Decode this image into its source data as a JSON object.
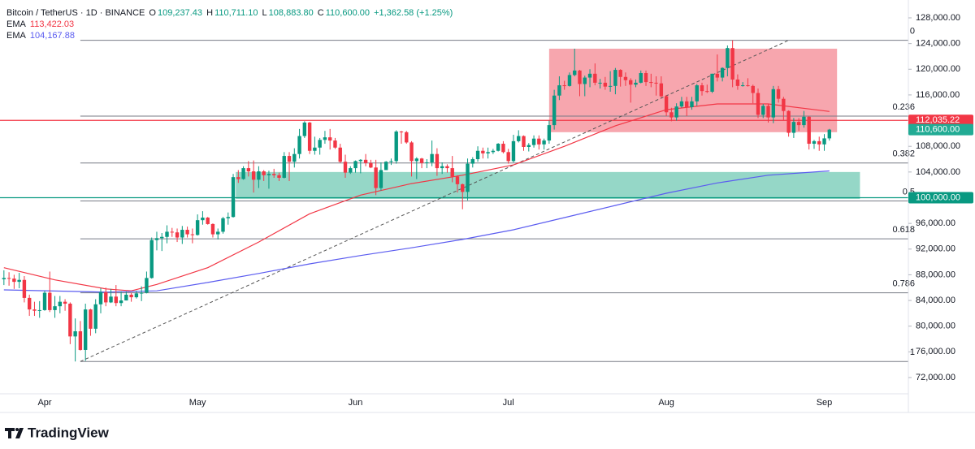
{
  "header": {
    "symbol": "Bitcoin / TetherUS · 1D · BINANCE",
    "ohlc": [
      {
        "key": "O",
        "value": "109,237.43"
      },
      {
        "key": "H",
        "value": "110,711.10"
      },
      {
        "key": "L",
        "value": "108,883.80"
      },
      {
        "key": "C",
        "value": "110,600.00"
      }
    ],
    "change": "+1,362.58 (+1.25%)"
  },
  "chart_data": {
    "type": "candlestick",
    "categories": [
      null,
      null,
      null,
      null,
      null,
      null,
      null,
      null,
      "Apr",
      null,
      null,
      null,
      null,
      null,
      null,
      null,
      null,
      null,
      null,
      null,
      null,
      null,
      null,
      null,
      null,
      null,
      null,
      null,
      null,
      null,
      null,
      null,
      null,
      null,
      null,
      null,
      null,
      null,
      "May",
      null,
      null,
      null,
      null,
      null,
      null,
      null,
      null,
      null,
      null,
      null,
      null,
      null,
      null,
      null,
      null,
      null,
      null,
      null,
      null,
      null,
      null,
      null,
      null,
      null,
      null,
      null,
      null,
      null,
      null,
      "Jun",
      null,
      null,
      null,
      null,
      null,
      null,
      null,
      null,
      null,
      null,
      null,
      null,
      null,
      null,
      null,
      null,
      null,
      null,
      null,
      null,
      null,
      null,
      null,
      null,
      null,
      null,
      null,
      null,
      null,
      "Jul",
      null,
      null,
      null,
      null,
      null,
      null,
      null,
      null,
      null,
      null,
      null,
      null,
      null,
      null,
      null,
      null,
      null,
      null,
      null,
      null,
      null,
      null,
      null,
      null,
      null,
      null,
      null,
      null,
      null,
      null,
      "Aug",
      null,
      null,
      null,
      null,
      null,
      null,
      null,
      null,
      null,
      null,
      null,
      null,
      null,
      null,
      null,
      null,
      null,
      null,
      null,
      null,
      null,
      null,
      null,
      null,
      null,
      null,
      null,
      null,
      null,
      null,
      "Sep",
      null
    ],
    "open": [
      87300,
      87500,
      87400,
      86900,
      87200,
      84400,
      82600,
      82400,
      82500,
      85200,
      82500,
      83100,
      83800,
      83500,
      78400,
      79200,
      76300,
      82600,
      79600,
      83400,
      85300,
      83700,
      84600,
      83600,
      84000,
      84900,
      84500,
      85100,
      85200,
      87500,
      93400,
      93700,
      93900,
      94700,
      94600,
      93800,
      95000,
      94300,
      94200,
      96500,
      96900,
      95900,
      94300,
      94700,
      96800,
      97000,
      103200,
      102900,
      104600,
      104100,
      102800,
      104100,
      103500,
      103700,
      103500,
      103100,
      106500,
      105600,
      106800,
      109600,
      111700,
      107300,
      107800,
      109000,
      109400,
      108900,
      107800,
      105600,
      103900,
      104600,
      105700,
      105900,
      105400,
      104700,
      101500,
      104300,
      105600,
      105700,
      110300,
      110200,
      108600,
      105700,
      106100,
      105400,
      105500,
      106800,
      104600,
      104900,
      104600,
      103300,
      102100,
      100900,
      105300,
      106000,
      107300,
      106900,
      107100,
      107300,
      108400,
      107100,
      105700,
      108800,
      109600,
      107900,
      108200,
      109200,
      108300,
      108900,
      111300,
      115900,
      117500,
      117400,
      119100,
      119800,
      117700,
      118700,
      119300,
      117900,
      117900,
      117300,
      117400,
      119900,
      118800,
      118300,
      117600,
      117900,
      119400,
      118000,
      117900,
      117800,
      115800,
      113300,
      112500,
      114200,
      115000,
      114100,
      115000,
      117500,
      116600,
      116500,
      119300,
      118700,
      120200,
      123300,
      118400,
      117400,
      117500,
      117400,
      116300,
      112900,
      114300,
      112500,
      116900,
      115400,
      113500,
      110100,
      111800,
      111300,
      112600,
      108400,
      108800,
      108300,
      109237.43
    ],
    "high": [
      88700,
      88400,
      88000,
      88300,
      87800,
      84900,
      83800,
      83900,
      85500,
      88500,
      84700,
      84700,
      84200,
      83700,
      81200,
      80800,
      83500,
      82700,
      84200,
      85900,
      86000,
      85800,
      86400,
      85400,
      85400,
      85200,
      85500,
      86200,
      88500,
      93800,
      94700,
      94500,
      95700,
      95300,
      95200,
      95600,
      95500,
      95200,
      97400,
      97900,
      97000,
      96000,
      95200,
      97000,
      97700,
      103700,
      104300,
      104900,
      105700,
      105800,
      104900,
      104300,
      104200,
      104500,
      103900,
      107100,
      107100,
      107700,
      110700,
      111900,
      111800,
      109500,
      109300,
      110400,
      110700,
      109300,
      108400,
      106700,
      104900,
      105800,
      106000,
      106800,
      105900,
      105900,
      105500,
      105700,
      106100,
      110500,
      110400,
      110400,
      108800,
      106300,
      106200,
      106000,
      108900,
      107700,
      105500,
      105200,
      106500,
      103500,
      102200,
      106100,
      106300,
      108000,
      107800,
      107800,
      107600,
      108500,
      108800,
      107600,
      109800,
      110500,
      109700,
      108500,
      109700,
      109700,
      109200,
      112000,
      116800,
      118900,
      118200,
      119500,
      123200,
      119900,
      119000,
      120000,
      120900,
      118500,
      118800,
      119700,
      120200,
      120000,
      119500,
      118600,
      118400,
      119800,
      119800,
      119300,
      118900,
      118900,
      116000,
      114000,
      114700,
      115700,
      115700,
      115700,
      117700,
      117900,
      117600,
      119300,
      122300,
      120300,
      123700,
      124500,
      119200,
      118000,
      118600,
      117600,
      117000,
      114600,
      114600,
      117400,
      117400,
      115700,
      113600,
      112400,
      112400,
      113500,
      112700,
      109000,
      109500,
      109900,
      110711.1
    ],
    "low": [
      86400,
      86300,
      85800,
      85900,
      83700,
      81600,
      81600,
      81300,
      82400,
      82200,
      81300,
      82000,
      82400,
      77200,
      74500,
      76200,
      74600,
      78500,
      78900,
      82000,
      83100,
      83600,
      83100,
      83100,
      84000,
      83800,
      84300,
      83900,
      85100,
      87400,
      91800,
      91700,
      92900,
      93900,
      93100,
      92800,
      93800,
      92900,
      94100,
      95800,
      95800,
      93800,
      93500,
      94400,
      95800,
      96900,
      102300,
      102800,
      103300,
      100800,
      101500,
      102600,
      101400,
      103100,
      102600,
      103000,
      102600,
      104700,
      106100,
      109300,
      106800,
      106700,
      106700,
      108400,
      107500,
      107600,
      105400,
      103100,
      103700,
      103900,
      103800,
      104900,
      104600,
      100400,
      101100,
      104300,
      105100,
      105300,
      108400,
      108400,
      103300,
      102900,
      104600,
      104600,
      104900,
      103400,
      103700,
      103900,
      102400,
      100800,
      98200,
      99600,
      104700,
      105600,
      106100,
      106100,
      106800,
      107200,
      106900,
      105300,
      105500,
      108600,
      107300,
      107200,
      107800,
      107500,
      107500,
      108400,
      110600,
      115200,
      116800,
      117300,
      118900,
      115800,
      115800,
      117200,
      117500,
      117000,
      116800,
      116500,
      116100,
      117300,
      117400,
      114800,
      117200,
      117800,
      117400,
      117200,
      115900,
      115600,
      112700,
      111900,
      112000,
      114000,
      112700,
      113700,
      114300,
      115900,
      116300,
      116300,
      118100,
      118100,
      118900,
      117200,
      116800,
      117300,
      117300,
      114700,
      112400,
      112400,
      111700,
      111600,
      114800,
      112100,
      109500,
      109300,
      110400,
      110900,
      107500,
      107600,
      107300,
      107300,
      108883.8
    ],
    "close": [
      87500,
      87400,
      86900,
      87200,
      84400,
      82600,
      82400,
      82500,
      85200,
      82500,
      83100,
      83800,
      83500,
      78400,
      79200,
      76300,
      82600,
      79600,
      83400,
      85300,
      83700,
      84600,
      83600,
      84000,
      84900,
      84500,
      85100,
      85200,
      87500,
      93400,
      93700,
      93900,
      94700,
      94600,
      93800,
      95000,
      94300,
      94200,
      96500,
      96900,
      95900,
      94300,
      94700,
      96800,
      97000,
      103200,
      102900,
      104600,
      104100,
      102800,
      104100,
      103500,
      103700,
      103500,
      103100,
      106500,
      105600,
      106800,
      109600,
      111700,
      107300,
      107800,
      109000,
      109400,
      108900,
      107800,
      105600,
      103900,
      104600,
      105700,
      105900,
      105400,
      104700,
      101500,
      104300,
      105600,
      105700,
      110300,
      110200,
      108600,
      105700,
      106100,
      105400,
      105500,
      106800,
      104600,
      104900,
      104600,
      103300,
      102100,
      100900,
      105300,
      106000,
      107300,
      106900,
      107100,
      107300,
      108400,
      107100,
      105700,
      108800,
      109600,
      107900,
      108200,
      109200,
      108300,
      108900,
      111300,
      115900,
      117500,
      117400,
      119100,
      119800,
      117700,
      118700,
      119300,
      117900,
      117900,
      117300,
      117400,
      119900,
      118800,
      118300,
      117600,
      117900,
      119400,
      118000,
      117900,
      117800,
      115800,
      113300,
      112500,
      114200,
      115000,
      114100,
      115000,
      117500,
      116600,
      116500,
      119300,
      118700,
      120200,
      123300,
      118400,
      117400,
      117500,
      117400,
      116300,
      112900,
      114300,
      112500,
      116900,
      115400,
      113500,
      110100,
      111800,
      111300,
      112600,
      108400,
      108800,
      108300,
      109237.43,
      110600
    ],
    "up_color": "#089981",
    "down_color": "#f23645",
    "xlim": [
      -0.77,
      177.5
    ],
    "ylim": [
      69470,
      130780
    ],
    "yticks": [
      {
        "value": 72000,
        "label": "72,000.00"
      },
      {
        "value": 76000,
        "label": "76,000.00"
      },
      {
        "value": 80000,
        "label": "80,000.00"
      },
      {
        "value": 84000,
        "label": "84,000.00"
      },
      {
        "value": 88000,
        "label": "88,000.00"
      },
      {
        "value": 92000,
        "label": "92,000.00"
      },
      {
        "value": 96000,
        "label": "96,000.00"
      },
      {
        "value": 100000,
        "label": "100,000.00"
      },
      {
        "value": 104000,
        "label": "104,000.00"
      },
      {
        "value": 108000,
        "label": "108,000.00"
      },
      {
        "value": 112000,
        "label": "112,000.00"
      },
      {
        "value": 116000,
        "label": "116,000.00"
      },
      {
        "value": 120000,
        "label": "120,000.00"
      },
      {
        "value": 124000,
        "label": "124,000.00"
      },
      {
        "value": 128000,
        "label": "128,000.00"
      }
    ],
    "series": [
      {
        "name": "EMA",
        "color": "#f23645",
        "last_label": "113,422.03",
        "x": [
          0,
          10,
          20,
          25,
          30,
          40,
          50,
          60,
          70,
          80,
          90,
          100,
          110,
          120,
          130,
          140,
          150,
          162
        ],
        "values": [
          89100,
          87200,
          85800,
          85500,
          86500,
          89100,
          93100,
          97500,
          100400,
          102200,
          103500,
          105100,
          108000,
          111200,
          113700,
          114600,
          114600,
          113422.03
        ]
      },
      {
        "name": "EMA",
        "color": "#5b5cf0",
        "last_label": "104,167.88",
        "x": [
          0,
          20,
          30,
          40,
          50,
          60,
          70,
          80,
          90,
          100,
          110,
          120,
          130,
          140,
          150,
          162
        ],
        "values": [
          85650,
          85300,
          85500,
          86800,
          88200,
          89700,
          91000,
          92200,
          93500,
          95000,
          96900,
          98800,
          100700,
          102300,
          103500,
          104167.88
        ]
      }
    ],
    "price_lines": [
      {
        "value": 112035.22,
        "label": "112,035.22",
        "color": "#f23645"
      },
      {
        "value": 100000,
        "label": "100,000.00",
        "color": "#089981"
      }
    ],
    "last_price": {
      "value": 110600,
      "label": "110,600.00",
      "color": "#22ab94"
    },
    "fib_levels": [
      {
        "ratio": 0,
        "price": 124500
      },
      {
        "ratio": 0.236,
        "price": 112700
      },
      {
        "ratio": 0.382,
        "price": 105400
      },
      {
        "ratio": 0.5,
        "price": 99500
      },
      {
        "ratio": 0.618,
        "price": 93600
      },
      {
        "ratio": 0.786,
        "price": 85200
      },
      {
        "ratio": 1,
        "price": 74500
      }
    ],
    "trendline": {
      "x": [
        15,
        154
      ],
      "y": [
        74500,
        124500
      ]
    },
    "zones": [
      {
        "x": [
          107,
          163.5
        ],
        "y": [
          110200,
          123200
        ],
        "color": "#f7a1aa"
      },
      {
        "x": [
          45.5,
          168
        ],
        "y": [
          99800,
          104000
        ],
        "color": "#8fd5c4"
      }
    ]
  },
  "footer": {
    "logo": "TradingView"
  }
}
